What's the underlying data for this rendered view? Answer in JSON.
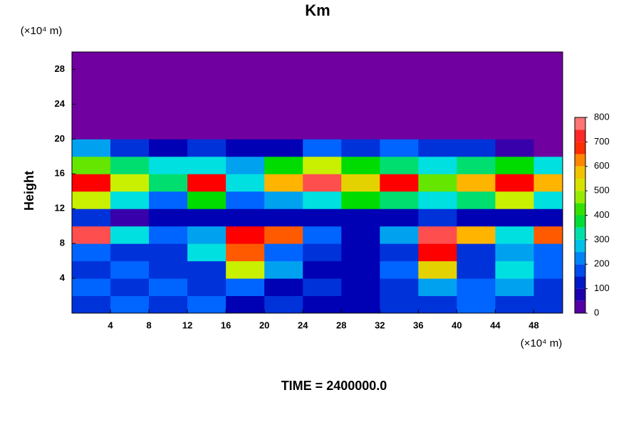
{
  "chart_data": {
    "type": "heatmap",
    "title": "Km",
    "ylabel": "Height",
    "y_unit": "(×10⁴ m)",
    "x_unit": "(×10⁴ m)",
    "footer": "TIME = 2400000.0",
    "xlim": [
      0,
      51
    ],
    "ylim": [
      0,
      30
    ],
    "xticks": [
      4,
      8,
      12,
      16,
      20,
      24,
      28,
      32,
      36,
      40,
      44,
      48
    ],
    "yticks": [
      4,
      8,
      12,
      16,
      20,
      24,
      28
    ],
    "x": [
      2,
      6,
      10,
      14,
      18,
      22,
      26,
      30,
      34,
      38,
      42,
      46,
      50
    ],
    "y": [
      1,
      3,
      5,
      7,
      9,
      11,
      13,
      15,
      17,
      19,
      21,
      23,
      25,
      27,
      29
    ],
    "z": [
      [
        150,
        200,
        150,
        200,
        100,
        150,
        100,
        100,
        150,
        150,
        200,
        150,
        150
      ],
      [
        200,
        150,
        200,
        150,
        200,
        100,
        150,
        100,
        150,
        250,
        200,
        250,
        150
      ],
      [
        150,
        200,
        150,
        150,
        500,
        250,
        100,
        100,
        200,
        550,
        150,
        300,
        200
      ],
      [
        200,
        150,
        150,
        300,
        650,
        200,
        150,
        100,
        150,
        700,
        150,
        250,
        200
      ],
      [
        750,
        300,
        200,
        250,
        700,
        650,
        200,
        100,
        250,
        750,
        600,
        300,
        650
      ],
      [
        150,
        50,
        100,
        100,
        100,
        100,
        100,
        100,
        100,
        150,
        100,
        100,
        100
      ],
      [
        500,
        300,
        200,
        400,
        200,
        250,
        300,
        400,
        350,
        300,
        350,
        500,
        300
      ],
      [
        700,
        500,
        350,
        700,
        300,
        600,
        750,
        550,
        700,
        450,
        600,
        700,
        600
      ],
      [
        450,
        350,
        300,
        300,
        250,
        400,
        500,
        400,
        350,
        300,
        350,
        400,
        300
      ],
      [
        250,
        150,
        100,
        150,
        100,
        100,
        200,
        150,
        200,
        150,
        150,
        50,
        0
      ],
      [
        0,
        0,
        0,
        0,
        0,
        0,
        0,
        0,
        0,
        0,
        0,
        0,
        0
      ],
      [
        0,
        0,
        0,
        0,
        0,
        0,
        0,
        0,
        0,
        0,
        0,
        0,
        0
      ],
      [
        0,
        0,
        0,
        0,
        0,
        0,
        0,
        0,
        0,
        0,
        0,
        0,
        0
      ],
      [
        0,
        0,
        0,
        0,
        0,
        0,
        0,
        0,
        0,
        0,
        0,
        0,
        0
      ],
      [
        0,
        0,
        0,
        0,
        0,
        0,
        0,
        0,
        0,
        0,
        0,
        0,
        0
      ]
    ],
    "colorbar_lim": [
      0,
      800
    ],
    "colorbar_ticks": [
      0,
      100,
      200,
      300,
      400,
      500,
      600,
      700,
      800
    ],
    "colorbar_step": 50,
    "colorscale": [
      [
        0,
        "#7000a0"
      ],
      [
        100,
        "#0000b4"
      ],
      [
        200,
        "#0064ff"
      ],
      [
        300,
        "#00e0e0"
      ],
      [
        400,
        "#00dc00"
      ],
      [
        500,
        "#c8f000"
      ],
      [
        600,
        "#ffb400"
      ],
      [
        700,
        "#ff0000"
      ],
      [
        800,
        "#ff9c9c"
      ]
    ]
  }
}
